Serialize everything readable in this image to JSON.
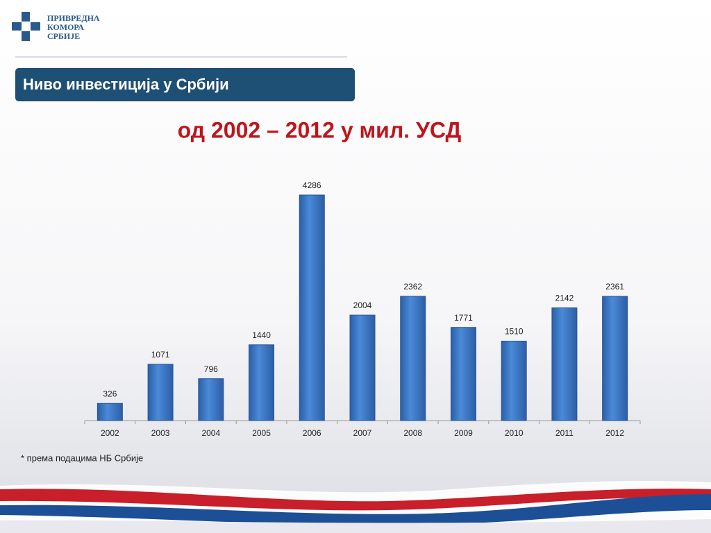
{
  "logo": {
    "lines": [
      "ПРИВРЕДНА",
      "КОМОРА",
      "СРБИЈЕ"
    ]
  },
  "header": {
    "title": "Ниво инвестиција у Србији"
  },
  "chart_data": {
    "type": "bar",
    "title": "од 2002 – 2012 у мил. УСД",
    "categories": [
      "2002",
      "2003",
      "2004",
      "2005",
      "2006",
      "2007",
      "2008",
      "2009",
      "2010",
      "2011",
      "2012"
    ],
    "values": [
      326,
      1071,
      796,
      1440,
      4286,
      2004,
      2362,
      1771,
      1510,
      2142,
      2361
    ],
    "color": "#3b78c9"
  },
  "footnote": "*  према подацима НБ Србије"
}
